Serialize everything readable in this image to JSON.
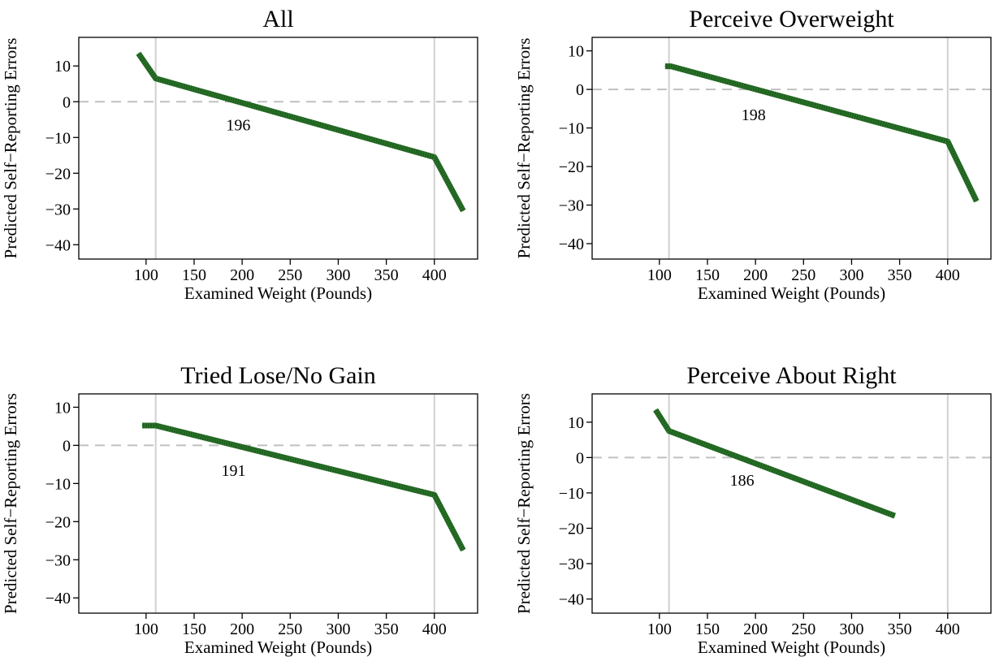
{
  "chart_data": [
    {
      "type": "line",
      "title": "All",
      "xlabel": "Examined Weight (Pounds)",
      "ylabel": "Predicted Self−Reporting Errors",
      "xlim": [
        30,
        445
      ],
      "ylim": [
        -44,
        18
      ],
      "xticks": [
        100,
        150,
        200,
        250,
        300,
        350,
        400
      ],
      "yticks": [
        10,
        0,
        -10,
        -20,
        -30,
        -40
      ],
      "reference_lines": {
        "vertical": [
          110,
          400
        ],
        "horizontal": [
          0
        ]
      },
      "crossing_label": "196",
      "crossing_label_at": [
        196,
        -8
      ],
      "series": [
        {
          "color": "#1f5f1f",
          "x": [
            92,
            110,
            400,
            430
          ],
          "y": [
            13.5,
            6.5,
            -15.5,
            -30.5
          ]
        }
      ]
    },
    {
      "type": "line",
      "title": "Perceive Overweight",
      "xlabel": "Examined Weight (Pounds)",
      "ylabel": "Predicted Self−Reporting Errors",
      "xlim": [
        30,
        445
      ],
      "ylim": [
        -44,
        13.5
      ],
      "xticks": [
        100,
        150,
        200,
        250,
        300,
        350,
        400
      ],
      "yticks": [
        10,
        0,
        -10,
        -20,
        -30,
        -40
      ],
      "reference_lines": {
        "vertical": [
          110,
          400
        ],
        "horizontal": [
          0
        ]
      },
      "crossing_label": "198",
      "crossing_label_at": [
        198,
        -8
      ],
      "series": [
        {
          "color": "#1f5f1f",
          "x": [
            106,
            112,
            400,
            430
          ],
          "y": [
            6.0,
            6.0,
            -13.5,
            -29.0
          ]
        }
      ]
    },
    {
      "type": "line",
      "title": "Tried Lose/No Gain",
      "xlabel": "Examined Weight (Pounds)",
      "ylabel": "Predicted Self−Reporting Errors",
      "xlim": [
        30,
        445
      ],
      "ylim": [
        -44,
        13.5
      ],
      "xticks": [
        100,
        150,
        200,
        250,
        300,
        350,
        400
      ],
      "yticks": [
        10,
        0,
        -10,
        -20,
        -30,
        -40
      ],
      "reference_lines": {
        "vertical": [
          110,
          400
        ],
        "horizontal": [
          0
        ]
      },
      "crossing_label": "191",
      "crossing_label_at": [
        191,
        -8
      ],
      "series": [
        {
          "color": "#1f5f1f",
          "x": [
            96,
            110,
            400,
            430
          ],
          "y": [
            5.2,
            5.2,
            -13.0,
            -27.5
          ]
        }
      ]
    },
    {
      "type": "line",
      "title": "Perceive About Right",
      "xlabel": "Examined Weight (Pounds)",
      "ylabel": "Predicted Self−Reporting Errors",
      "xlim": [
        30,
        445
      ],
      "ylim": [
        -44,
        18
      ],
      "xticks": [
        100,
        150,
        200,
        250,
        300,
        350,
        400
      ],
      "yticks": [
        10,
        0,
        -10,
        -20,
        -30,
        -40
      ],
      "reference_lines": {
        "vertical": [
          110,
          400
        ],
        "horizontal": [
          0
        ]
      },
      "crossing_label": "186",
      "crossing_label_at": [
        186,
        -8
      ],
      "series": [
        {
          "color": "#1f5f1f",
          "x": [
            96,
            110,
            345
          ],
          "y": [
            13.5,
            7.5,
            -16.5
          ]
        }
      ]
    }
  ]
}
